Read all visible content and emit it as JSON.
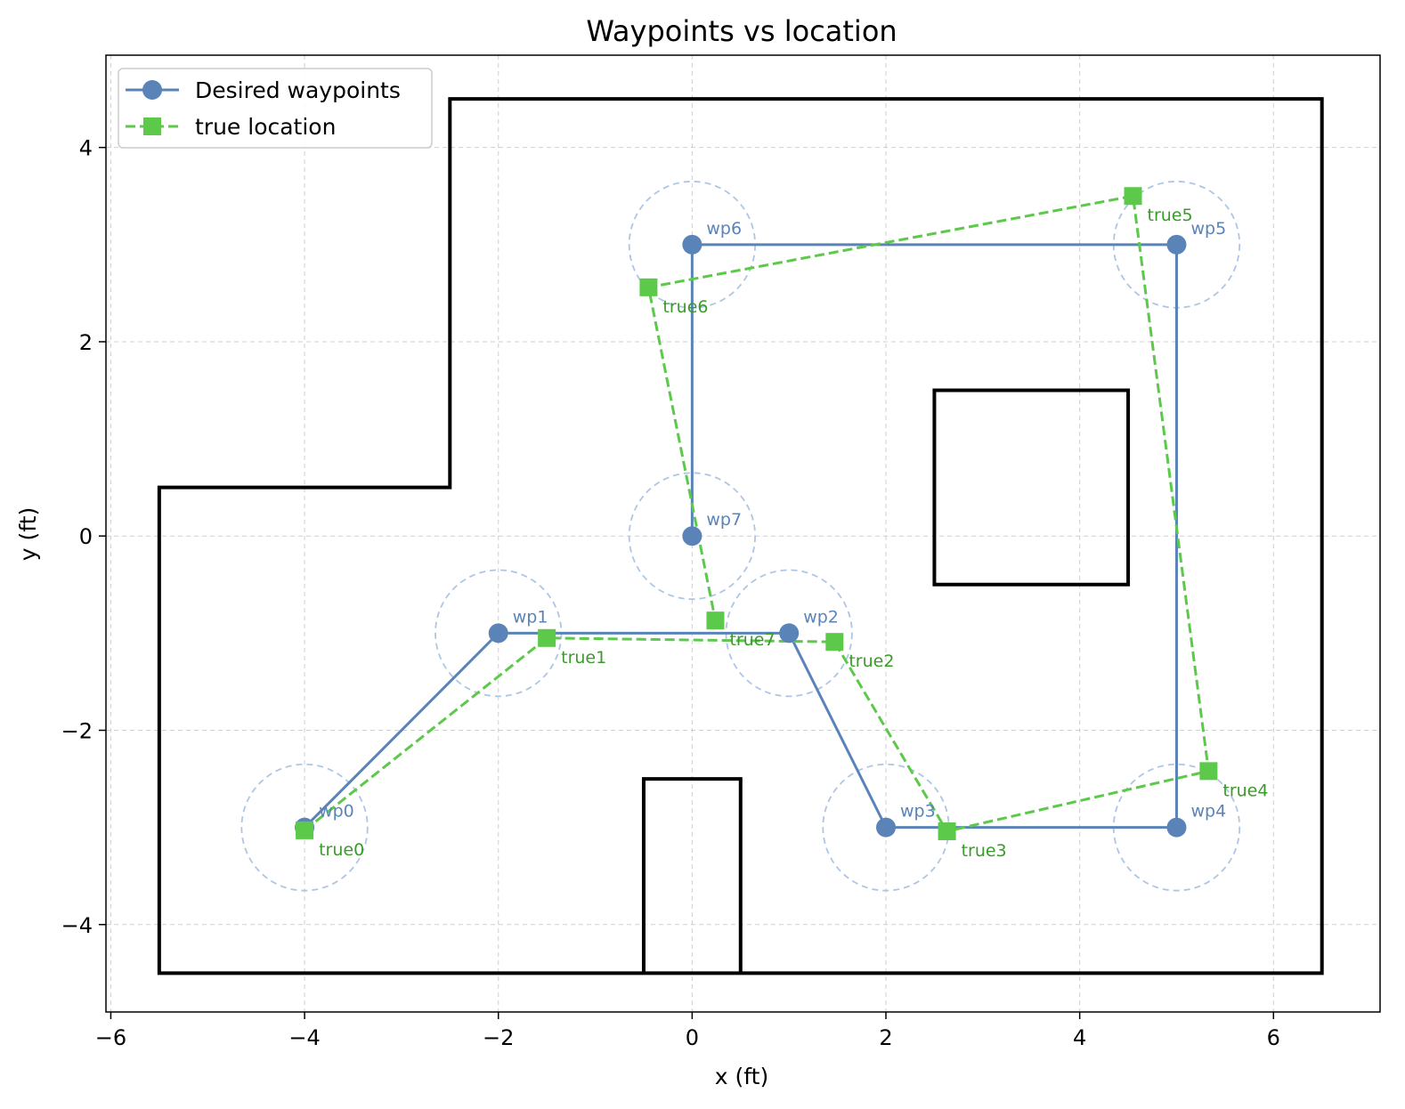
{
  "chart_data": {
    "type": "line",
    "title": "Waypoints vs location",
    "xlabel": "x (ft)",
    "ylabel": "y (ft)",
    "xlim": [
      -6.05,
      7.1
    ],
    "ylim": [
      -4.9,
      4.95
    ],
    "xticks": [
      -6,
      -4,
      -2,
      0,
      2,
      4,
      6
    ],
    "yticks": [
      -4,
      -2,
      0,
      2,
      4
    ],
    "xtick_labels": [
      "−6",
      "−4",
      "−2",
      "0",
      "2",
      "4",
      "6"
    ],
    "ytick_labels": [
      "−4",
      "−2",
      "0",
      "2",
      "4"
    ],
    "grid": true,
    "legend_position": "top-left",
    "series": [
      {
        "name": "Desired waypoints",
        "color": "#5a84b8",
        "marker": "circle",
        "line_style": "solid",
        "x": [
          -4,
          -2,
          1,
          2,
          5,
          5,
          0,
          0
        ],
        "y": [
          -3,
          -1,
          -1,
          -3,
          -3,
          3,
          3,
          0
        ],
        "point_labels": [
          "wp0",
          "wp1",
          "wp2",
          "wp3",
          "wp4",
          "wp5",
          "wp6",
          "wp7"
        ]
      },
      {
        "name": "true location",
        "color": "#5cc94a",
        "marker": "square",
        "line_style": "dashed",
        "x": [
          -4.0,
          -1.5,
          1.47,
          2.63,
          5.33,
          4.55,
          -0.45,
          0.24
        ],
        "y": [
          -3.03,
          -1.05,
          -1.09,
          -3.04,
          -2.42,
          3.5,
          2.56,
          -0.87
        ],
        "point_labels": [
          "true0",
          "true1",
          "true2",
          "true3",
          "true4",
          "true5",
          "true6",
          "true7"
        ]
      }
    ],
    "tolerance_circle_radius": 0.65,
    "tolerance_circle_color": "#aec6e4",
    "label_colors": {
      "wp": "#5a84b8",
      "true": "#3a9a2a"
    },
    "obstacles": [
      {
        "name": "outer-boundary",
        "points": [
          [
            -5.5,
            -4.5
          ],
          [
            6.5,
            -4.5
          ],
          [
            6.5,
            4.5
          ],
          [
            -2.5,
            4.5
          ],
          [
            -2.5,
            0.5
          ],
          [
            -5.5,
            0.5
          ]
        ],
        "closed": true
      },
      {
        "name": "square-obstacle",
        "points": [
          [
            2.5,
            -0.5
          ],
          [
            4.5,
            -0.5
          ],
          [
            4.5,
            1.5
          ],
          [
            2.5,
            1.5
          ]
        ],
        "closed": true
      },
      {
        "name": "bottom-obstacle",
        "points": [
          [
            -0.5,
            -4.5
          ],
          [
            -0.5,
            -2.5
          ],
          [
            0.5,
            -2.5
          ],
          [
            0.5,
            -4.5
          ]
        ],
        "closed": false
      }
    ]
  }
}
